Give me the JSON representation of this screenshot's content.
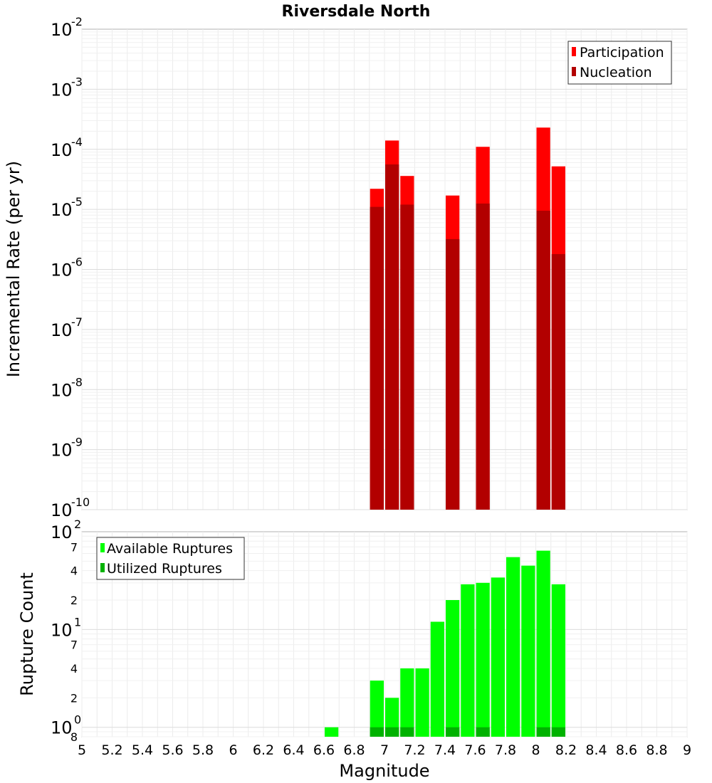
{
  "chart_data": [
    {
      "type": "bar",
      "title": "Riversdale North",
      "ylabel": "Incremental Rate (per yr)",
      "yscale": "log",
      "ylim": [
        1e-10,
        0.01
      ],
      "y_ticks": [
        {
          "base": "10",
          "exp": "-2",
          "value": 0.01
        },
        {
          "base": "10",
          "exp": "-3",
          "value": 0.001
        },
        {
          "base": "10",
          "exp": "-4",
          "value": 0.0001
        },
        {
          "base": "10",
          "exp": "-5",
          "value": 1e-05
        },
        {
          "base": "10",
          "exp": "-6",
          "value": 1e-06
        },
        {
          "base": "10",
          "exp": "-7",
          "value": 1e-07
        },
        {
          "base": "10",
          "exp": "-8",
          "value": 1e-08
        },
        {
          "base": "10",
          "exp": "-9",
          "value": 1e-09
        },
        {
          "base": "10",
          "exp": "-10",
          "value": 1e-10
        }
      ],
      "legend": {
        "placement": "top-right",
        "entries": [
          "Participation",
          "Nucleation"
        ]
      },
      "colors": {
        "Participation": "#ff0000",
        "Nucleation": "#b20000"
      },
      "grid": true,
      "series": [
        {
          "name": "Participation",
          "x": [
            6.95,
            7.05,
            7.15,
            7.45,
            7.65,
            8.05,
            8.15
          ],
          "values": [
            2.2e-05,
            0.00014,
            3.6e-05,
            1.7e-05,
            0.00011,
            0.00023,
            5.2e-05
          ]
        },
        {
          "name": "Nucleation",
          "x": [
            6.95,
            7.05,
            7.15,
            7.45,
            7.65,
            8.05,
            8.15
          ],
          "values": [
            1.1e-05,
            5.6e-05,
            1.2e-05,
            3.2e-06,
            1.25e-05,
            9.5e-06,
            1.8e-06
          ]
        }
      ]
    },
    {
      "type": "bar",
      "xlabel": "Magnitude",
      "ylabel": "Rupture Count",
      "yscale": "log",
      "ylim": [
        0.8,
        100
      ],
      "y_ticks": [
        {
          "base": "10",
          "exp": "2",
          "value": 100
        },
        {
          "base": "10",
          "exp": "1",
          "value": 10
        },
        {
          "base": "10",
          "exp": "0",
          "value": 1
        }
      ],
      "y_minor_ticks": [
        {
          "label": "7",
          "value": 70
        },
        {
          "label": "4",
          "value": 40
        },
        {
          "label": "2",
          "value": 20
        },
        {
          "label": "7",
          "value": 7
        },
        {
          "label": "4",
          "value": 4
        },
        {
          "label": "2",
          "value": 2
        },
        {
          "label": "8",
          "value": 0.8
        }
      ],
      "xlim": [
        5,
        9
      ],
      "x_ticks": [
        "5",
        "5.2",
        "5.4",
        "5.6",
        "5.8",
        "6",
        "6.2",
        "6.4",
        "6.6",
        "6.8",
        "7",
        "7.2",
        "7.4",
        "7.6",
        "7.8",
        "8",
        "8.2",
        "8.4",
        "8.6",
        "8.8",
        "9"
      ],
      "legend": {
        "placement": "top-left",
        "entries": [
          "Available Ruptures",
          "Utilized Ruptures"
        ]
      },
      "colors": {
        "Available Ruptures": "#00ff00",
        "Utilized Ruptures": "#00b200"
      },
      "grid": true,
      "series": [
        {
          "name": "Available Ruptures",
          "x": [
            6.65,
            6.95,
            7.05,
            7.15,
            7.25,
            7.35,
            7.45,
            7.55,
            7.65,
            7.75,
            7.85,
            7.95,
            8.05,
            8.15
          ],
          "values": [
            1,
            3,
            2,
            4,
            4,
            12,
            20,
            29,
            30,
            34,
            55,
            45,
            64,
            29
          ]
        },
        {
          "name": "Utilized Ruptures",
          "x": [
            6.95,
            7.05,
            7.15,
            7.45,
            7.65,
            8.05,
            8.15
          ],
          "values": [
            1,
            1,
            1,
            1,
            1,
            1,
            1
          ]
        }
      ]
    }
  ]
}
